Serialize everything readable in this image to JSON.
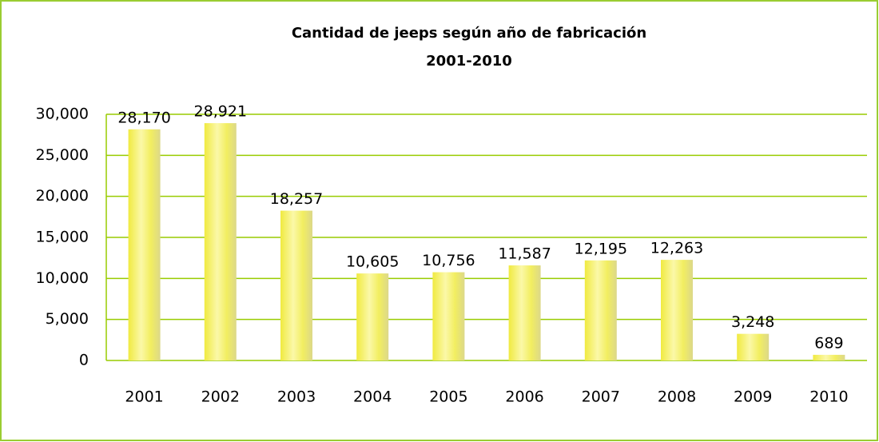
{
  "chart_data": {
    "type": "bar",
    "title": "Cantidad de jeeps según año de fabricación",
    "subtitle": "2001-2010",
    "categories": [
      "2001",
      "2002",
      "2003",
      "2004",
      "2005",
      "2006",
      "2007",
      "2008",
      "2009",
      "2010"
    ],
    "values": [
      28170,
      28921,
      18257,
      10605,
      10756,
      11587,
      12195,
      12263,
      3248,
      689
    ],
    "value_labels": [
      "28,170",
      "28,921",
      "18,257",
      "10,605",
      "10,756",
      "11,587",
      "12,195",
      "12,263",
      "3,248",
      "689"
    ],
    "color": "#f2ee60",
    "ylim": [
      0,
      30000
    ],
    "yticks": [
      0,
      {
        "value": 5000,
        "label": "5,000"
      },
      {
        "value": 10000,
        "label": "10,000"
      },
      {
        "value": 15000,
        "label": "15,000"
      },
      {
        "value": 20000,
        "label": "20,000"
      },
      {
        "value": 25000,
        "label": "25,000"
      },
      {
        "value": 30000,
        "label": "30,000"
      }
    ],
    "grid": true
  }
}
